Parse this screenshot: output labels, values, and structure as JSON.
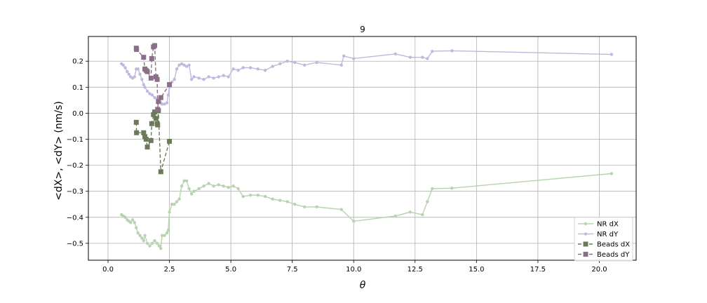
{
  "chart_data": {
    "type": "line",
    "title": "9",
    "xlabel": "θ",
    "ylabel": "<dX>, <dY> (nm/s)",
    "xlim": [
      -0.8,
      21.5
    ],
    "ylim": [
      -0.565,
      0.295
    ],
    "xticks": [
      0.0,
      2.5,
      5.0,
      7.5,
      10.0,
      12.5,
      15.0,
      17.5,
      20.0
    ],
    "xtick_labels": [
      "0.0",
      "2.5",
      "5.0",
      "7.5",
      "10.0",
      "12.5",
      "15.0",
      "17.5",
      "20.0"
    ],
    "yticks": [
      -0.5,
      -0.4,
      -0.3,
      -0.2,
      -0.1,
      0.0,
      0.1,
      0.2
    ],
    "ytick_labels": [
      "−0.5",
      "−0.4",
      "−0.3",
      "−0.2",
      "−0.1",
      "0.0",
      "0.1",
      "0.2"
    ],
    "grid": true,
    "legend_position": "bottom-right",
    "series": [
      {
        "name": "NR dX",
        "color": "#b7d3b0",
        "style": "solid",
        "marker": "circle",
        "x": [
          0.55,
          0.62,
          0.7,
          0.78,
          0.85,
          0.92,
          1.0,
          1.08,
          1.15,
          1.22,
          1.3,
          1.38,
          1.45,
          1.5,
          1.6,
          1.7,
          1.8,
          1.9,
          2.0,
          2.08,
          2.15,
          2.2,
          2.3,
          2.4,
          2.45,
          2.5,
          2.6,
          2.7,
          2.8,
          2.9,
          3.0,
          3.1,
          3.2,
          3.3,
          3.4,
          3.5,
          3.7,
          3.9,
          4.1,
          4.3,
          4.5,
          4.7,
          4.9,
          5.1,
          5.3,
          5.5,
          5.8,
          6.1,
          6.4,
          6.7,
          7.0,
          7.3,
          7.6,
          8.0,
          8.5,
          9.5,
          10.0,
          11.7,
          12.3,
          12.8,
          13.0,
          13.2,
          14.0,
          20.5
        ],
        "y": [
          -0.39,
          -0.395,
          -0.4,
          -0.41,
          -0.415,
          -0.42,
          -0.41,
          -0.42,
          -0.44,
          -0.46,
          -0.47,
          -0.48,
          -0.49,
          -0.47,
          -0.5,
          -0.51,
          -0.5,
          -0.49,
          -0.5,
          -0.51,
          -0.52,
          -0.47,
          -0.47,
          -0.46,
          -0.45,
          -0.38,
          -0.35,
          -0.35,
          -0.34,
          -0.33,
          -0.28,
          -0.26,
          -0.26,
          -0.29,
          -0.31,
          -0.3,
          -0.29,
          -0.28,
          -0.27,
          -0.28,
          -0.275,
          -0.28,
          -0.285,
          -0.28,
          -0.29,
          -0.32,
          -0.315,
          -0.315,
          -0.32,
          -0.33,
          -0.335,
          -0.34,
          -0.35,
          -0.36,
          -0.36,
          -0.37,
          -0.415,
          -0.395,
          -0.38,
          -0.39,
          -0.34,
          -0.29,
          -0.288,
          -0.232
        ]
      },
      {
        "name": "NR dY",
        "color": "#c2b8df",
        "style": "solid",
        "marker": "circle",
        "x": [
          0.55,
          0.62,
          0.7,
          0.78,
          0.85,
          0.92,
          1.0,
          1.08,
          1.15,
          1.22,
          1.3,
          1.38,
          1.45,
          1.5,
          1.6,
          1.7,
          1.8,
          1.9,
          2.0,
          2.08,
          2.15,
          2.2,
          2.3,
          2.4,
          2.45,
          2.5,
          2.6,
          2.7,
          2.8,
          2.9,
          3.0,
          3.1,
          3.2,
          3.3,
          3.4,
          3.5,
          3.7,
          3.9,
          4.1,
          4.3,
          4.5,
          4.7,
          4.9,
          5.1,
          5.3,
          5.5,
          5.8,
          6.1,
          6.4,
          6.7,
          7.0,
          7.3,
          7.6,
          8.0,
          8.5,
          9.5,
          9.6,
          10.0,
          11.7,
          12.3,
          12.8,
          13.0,
          13.2,
          14.0,
          20.5
        ],
        "y": [
          0.19,
          0.185,
          0.175,
          0.16,
          0.15,
          0.14,
          0.135,
          0.14,
          0.17,
          0.17,
          0.15,
          0.13,
          0.11,
          0.1,
          0.085,
          0.075,
          0.07,
          0.06,
          0.055,
          0.045,
          0.04,
          0.035,
          0.035,
          0.04,
          0.07,
          0.1,
          0.12,
          0.13,
          0.17,
          0.185,
          0.19,
          0.185,
          0.18,
          0.185,
          0.13,
          0.14,
          0.135,
          0.13,
          0.14,
          0.135,
          0.14,
          0.145,
          0.14,
          0.17,
          0.165,
          0.175,
          0.175,
          0.17,
          0.165,
          0.18,
          0.19,
          0.2,
          0.195,
          0.185,
          0.195,
          0.185,
          0.22,
          0.21,
          0.228,
          0.215,
          0.215,
          0.21,
          0.238,
          0.24,
          0.226
        ]
      },
      {
        "name": "Beads dX",
        "color": "#6b7b5a",
        "style": "dashed",
        "marker": "square",
        "x": [
          1.15,
          1.16,
          1.45,
          1.5,
          1.55,
          1.6,
          1.75,
          1.78,
          1.85,
          1.9,
          1.95,
          2.0,
          2.02,
          2.05,
          2.15,
          2.5
        ],
        "y": [
          -0.035,
          -0.075,
          -0.075,
          -0.09,
          -0.1,
          -0.13,
          -0.105,
          -0.04,
          -0.005,
          0.005,
          -0.02,
          -0.04,
          -0.045,
          0.01,
          -0.225,
          -0.108
        ]
      },
      {
        "name": "Beads dY",
        "color": "#8b6e88",
        "style": "dashed",
        "marker": "square",
        "x": [
          1.15,
          1.16,
          1.45,
          1.5,
          1.55,
          1.6,
          1.75,
          1.78,
          1.85,
          1.9,
          1.95,
          2.0,
          2.02,
          2.05,
          2.15,
          2.5
        ],
        "y": [
          0.25,
          0.245,
          0.215,
          0.17,
          0.165,
          0.16,
          0.135,
          0.21,
          0.255,
          0.26,
          0.14,
          0.13,
          0.015,
          0.045,
          0.06,
          0.11
        ]
      }
    ]
  }
}
